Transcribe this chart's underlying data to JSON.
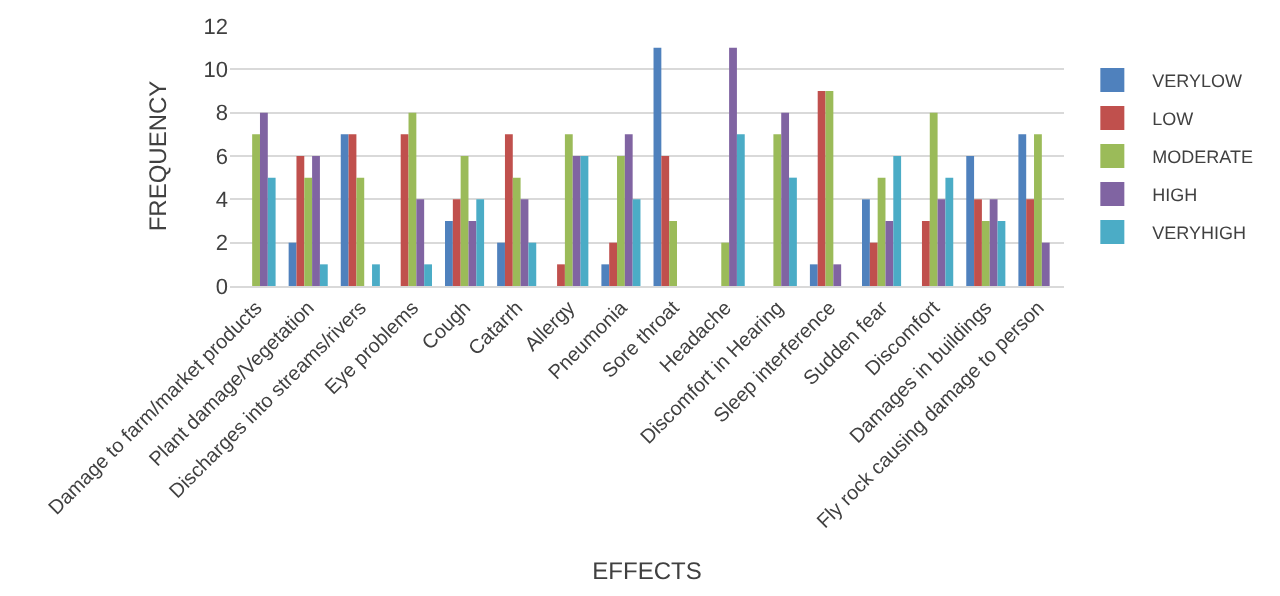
{
  "chart_data": {
    "type": "bar",
    "xlabel": "EFFECTS",
    "ylabel": "FREQUENCY",
    "categories": [
      "Damage to farm/market products",
      "Plant damage/Vegetation",
      "Discharges into streams/rivers",
      "Eye problems",
      "Cough",
      "Catarrh",
      "Allergy",
      "Pneumonia",
      "Sore throat",
      "Headache",
      "Discomfort in Hearing",
      "Sleep interference",
      "Sudden fear",
      "Discomfort",
      "Damages in buildings",
      "Fly rock causing damage to person"
    ],
    "series": [
      {
        "name": "VERYLOW",
        "color": "#4f81bd",
        "values": [
          0,
          2,
          7,
          0,
          3,
          2,
          0,
          1,
          11,
          0,
          0,
          1,
          4,
          0,
          6,
          7
        ]
      },
      {
        "name": "LOW",
        "color": "#c0504d",
        "values": [
          0,
          6,
          7,
          7,
          4,
          7,
          1,
          2,
          6,
          0,
          0,
          9,
          2,
          3,
          4,
          4
        ]
      },
      {
        "name": "MODERATE",
        "color": "#9bbb59",
        "values": [
          7,
          5,
          5,
          8,
          6,
          5,
          7,
          6,
          3,
          2,
          7,
          9,
          5,
          8,
          3,
          7
        ]
      },
      {
        "name": "HIGH",
        "color": "#8064a2",
        "values": [
          8,
          6,
          0,
          4,
          3,
          4,
          6,
          7,
          0,
          11,
          8,
          1,
          3,
          4,
          4,
          2
        ]
      },
      {
        "name": "VERYHIGH",
        "color": "#4bacc6",
        "values": [
          5,
          1,
          1,
          1,
          4,
          2,
          6,
          4,
          0,
          7,
          5,
          0,
          6,
          5,
          3,
          0
        ]
      }
    ],
    "ylim": [
      0,
      12
    ],
    "yticks": [
      0,
      2,
      4,
      6,
      8,
      10,
      12
    ],
    "grid": "y",
    "legend": "right"
  }
}
